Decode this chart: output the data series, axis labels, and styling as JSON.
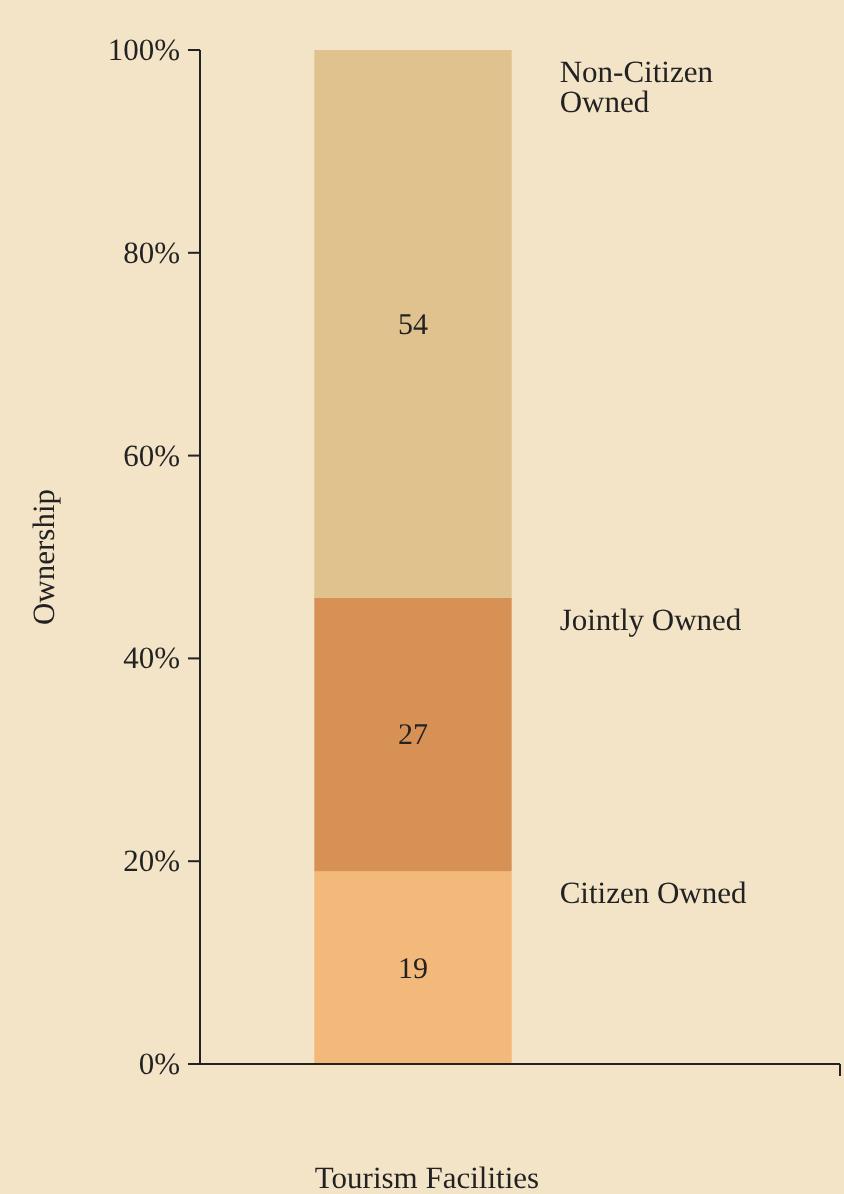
{
  "chart_data": {
    "type": "bar",
    "stacked": true,
    "ylabel": "Ownership",
    "categories": [
      "Tourism Facilities"
    ],
    "series": [
      {
        "name": "Citizen Owned",
        "color": "#f2b97a",
        "values": [
          19
        ]
      },
      {
        "name": "Jointly Owned",
        "color": "#d89155",
        "values": [
          27
        ]
      },
      {
        "name": "Non-Citizen Owned",
        "color": "#e0c28f",
        "values": [
          54
        ]
      }
    ],
    "ylim": [
      0,
      100
    ],
    "yticks": [
      {
        "value": 0,
        "label": "0%"
      },
      {
        "value": 20,
        "label": "20%"
      },
      {
        "value": 40,
        "label": "40%"
      },
      {
        "value": 60,
        "label": "60%"
      },
      {
        "value": 80,
        "label": "80%"
      },
      {
        "value": 100,
        "label": "100%"
      }
    ],
    "data_labels": true
  }
}
